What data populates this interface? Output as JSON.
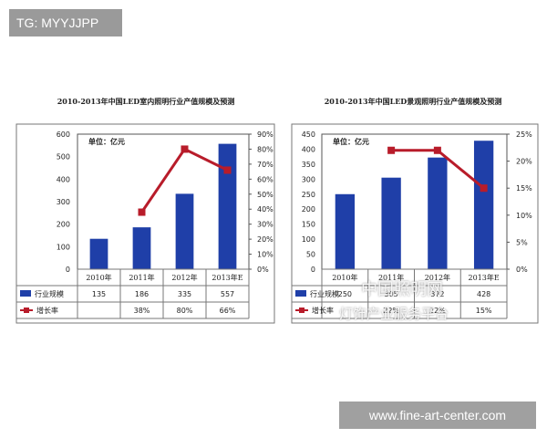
{
  "watermark_tag": "TG: MYYJJPP",
  "site_tag": "www.fine-art-center.com",
  "overlay": {
    "line1": "中国照明网",
    "line2": "灯饰产业服务平台"
  },
  "chart_data": [
    {
      "type": "bar",
      "title": "2010-2013年中国LED室内照明行业产值规模及预测",
      "unit_label": "单位：亿元",
      "categories": [
        "2010年",
        "2011年",
        "2012年",
        "2013年E"
      ],
      "y_ticks": [
        "0",
        "100",
        "200",
        "300",
        "400",
        "500",
        "600"
      ],
      "y2_ticks": [
        "0%",
        "10%",
        "20%",
        "30%",
        "40%",
        "50%",
        "60%",
        "70%",
        "80%",
        "90%"
      ],
      "ylim": [
        0,
        600
      ],
      "y2lim": [
        0,
        90
      ],
      "series": [
        {
          "name": "行业规模",
          "type": "bar",
          "values": [
            135,
            186,
            335,
            557
          ],
          "labels": [
            "135",
            "186",
            "335",
            "557"
          ],
          "color": "#1f3fa8"
        },
        {
          "name": "增长率",
          "type": "line",
          "axis": "right",
          "values": [
            null,
            38,
            80,
            66
          ],
          "labels": [
            "",
            "38%",
            "80%",
            "66%"
          ],
          "color": "#b81c2a"
        }
      ]
    },
    {
      "type": "bar",
      "title": "2010-2013年中国LED景观照明行业产值规模及预测",
      "unit_label": "单位：亿元",
      "categories": [
        "2010年",
        "2011年",
        "2012年",
        "2013年E"
      ],
      "y_ticks": [
        "0",
        "50",
        "100",
        "150",
        "200",
        "250",
        "300",
        "350",
        "400",
        "450"
      ],
      "y2_ticks": [
        "0%",
        "5%",
        "10%",
        "15%",
        "20%",
        "25%"
      ],
      "ylim": [
        0,
        450
      ],
      "y2lim": [
        0,
        25
      ],
      "series": [
        {
          "name": "行业规模",
          "type": "bar",
          "values": [
            250,
            305,
            372,
            428
          ],
          "labels": [
            "250",
            "305",
            "372",
            "428"
          ],
          "color": "#1f3fa8"
        },
        {
          "name": "增长率",
          "type": "line",
          "axis": "right",
          "values": [
            null,
            22,
            22,
            15
          ],
          "labels": [
            "",
            "22%",
            "22%",
            "15%"
          ],
          "color": "#b81c2a"
        }
      ]
    }
  ]
}
